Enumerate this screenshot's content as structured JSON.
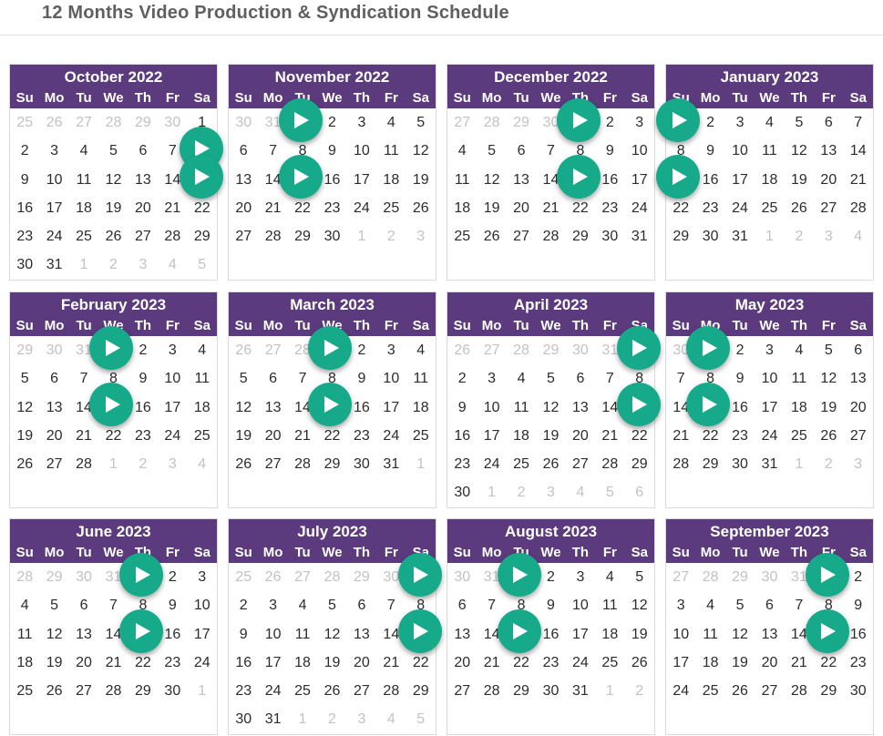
{
  "page": {
    "title": "12 Months Video Production & Syndication Schedule"
  },
  "weekdays": [
    "Su",
    "Mo",
    "Tu",
    "We",
    "Th",
    "Fr",
    "Sa"
  ],
  "calendars": [
    {
      "title": "October 2022",
      "year": 2022,
      "month": 10,
      "videos": [
        8,
        15
      ]
    },
    {
      "title": "November 2022",
      "year": 2022,
      "month": 11,
      "videos": [
        1,
        15
      ]
    },
    {
      "title": "December 2022",
      "year": 2022,
      "month": 12,
      "videos": [
        1,
        15
      ]
    },
    {
      "title": "January 2023",
      "year": 2023,
      "month": 1,
      "videos": [
        1,
        15
      ]
    },
    {
      "title": "February 2023",
      "year": 2023,
      "month": 2,
      "videos": [
        1,
        15
      ]
    },
    {
      "title": "March 2023",
      "year": 2023,
      "month": 3,
      "videos": [
        1,
        15
      ]
    },
    {
      "title": "April 2023",
      "year": 2023,
      "month": 4,
      "videos": [
        1,
        15
      ]
    },
    {
      "title": "May 2023",
      "year": 2023,
      "month": 5,
      "videos": [
        1,
        15
      ]
    },
    {
      "title": "June 2023",
      "year": 2023,
      "month": 6,
      "videos": [
        1,
        15
      ]
    },
    {
      "title": "July 2023",
      "year": 2023,
      "month": 7,
      "videos": [
        1,
        15
      ]
    },
    {
      "title": "August 2023",
      "year": 2023,
      "month": 8,
      "videos": [
        1,
        15
      ]
    },
    {
      "title": "September 2023",
      "year": 2023,
      "month": 9,
      "videos": [
        1,
        15
      ]
    }
  ],
  "icons": {
    "play": "play-icon"
  },
  "colors": {
    "header": "#5b3a7d",
    "play_button": "#16aa8b",
    "muted_day": "#c2c2c2"
  }
}
